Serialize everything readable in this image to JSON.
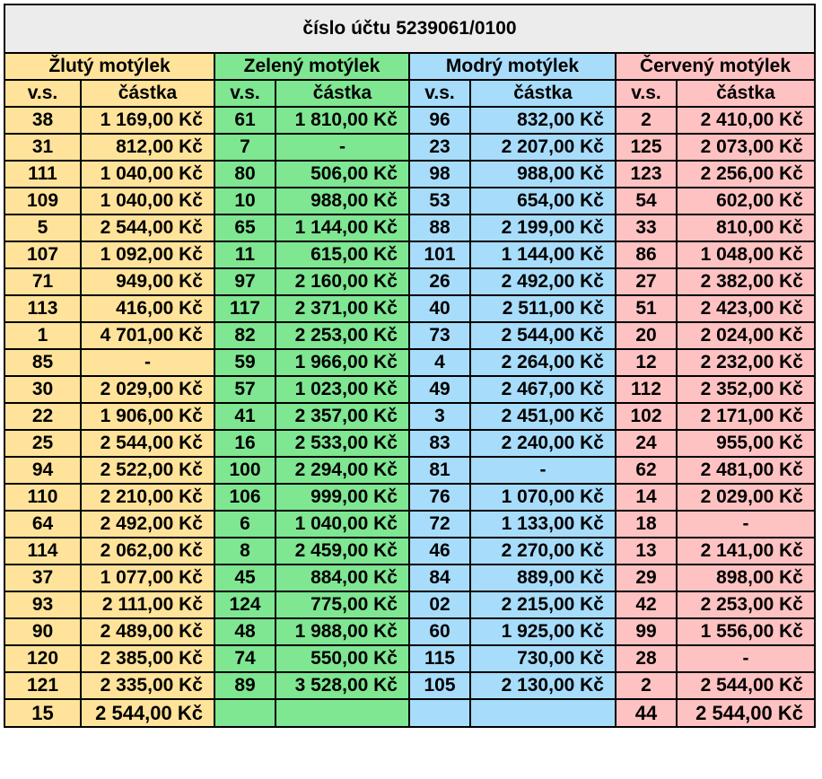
{
  "title": "číslo účtu 5239061/0100",
  "colors": {
    "yellow": "#ffe39a",
    "green": "#7fe692",
    "blue": "#a7dcfa",
    "red": "#ffc2c2",
    "title_bg": "#ececec"
  },
  "groups": [
    {
      "name": "Žlutý motýlek",
      "color_key": "yellow"
    },
    {
      "name": "Zelený motýlek",
      "color_key": "green"
    },
    {
      "name": "Modrý motýlek",
      "color_key": "blue"
    },
    {
      "name": "Červený motýlek",
      "color_key": "red"
    }
  ],
  "subheaders": {
    "vs": "v.s.",
    "amount": "částka"
  },
  "rows": [
    [
      [
        "38",
        "1 169,00 Kč"
      ],
      [
        "61",
        "1 810,00 Kč"
      ],
      [
        "96",
        "832,00 Kč"
      ],
      [
        "2",
        "2 410,00 Kč"
      ]
    ],
    [
      [
        "31",
        "812,00 Kč"
      ],
      [
        "7",
        "-"
      ],
      [
        "23",
        "2 207,00 Kč"
      ],
      [
        "125",
        "2 073,00 Kč"
      ]
    ],
    [
      [
        "111",
        "1 040,00 Kč"
      ],
      [
        "80",
        "506,00 Kč"
      ],
      [
        "98",
        "988,00 Kč"
      ],
      [
        "123",
        "2 256,00 Kč"
      ]
    ],
    [
      [
        "109",
        "1 040,00 Kč"
      ],
      [
        "10",
        "988,00 Kč"
      ],
      [
        "53",
        "654,00 Kč"
      ],
      [
        "54",
        "602,00 Kč"
      ]
    ],
    [
      [
        "5",
        "2 544,00 Kč"
      ],
      [
        "65",
        "1 144,00 Kč"
      ],
      [
        "88",
        "2 199,00 Kč"
      ],
      [
        "33",
        "810,00 Kč"
      ]
    ],
    [
      [
        "107",
        "1 092,00 Kč"
      ],
      [
        "11",
        "615,00 Kč"
      ],
      [
        "101",
        "1 144,00 Kč"
      ],
      [
        "86",
        "1 048,00 Kč"
      ]
    ],
    [
      [
        "71",
        "949,00 Kč"
      ],
      [
        "97",
        "2 160,00 Kč"
      ],
      [
        "26",
        "2 492,00 Kč"
      ],
      [
        "27",
        "2 382,00 Kč"
      ]
    ],
    [
      [
        "113",
        "416,00 Kč"
      ],
      [
        "117",
        "2 371,00 Kč"
      ],
      [
        "40",
        "2 511,00 Kč"
      ],
      [
        "51",
        "2 423,00 Kč"
      ]
    ],
    [
      [
        "1",
        "4 701,00 Kč"
      ],
      [
        "82",
        "2 253,00 Kč"
      ],
      [
        "73",
        "2 544,00 Kč"
      ],
      [
        "20",
        "2 024,00 Kč"
      ]
    ],
    [
      [
        "85",
        "-"
      ],
      [
        "59",
        "1 966,00 Kč"
      ],
      [
        "4",
        "2 264,00 Kč"
      ],
      [
        "12",
        "2 232,00 Kč"
      ]
    ],
    [
      [
        "30",
        "2 029,00 Kč"
      ],
      [
        "57",
        "1 023,00 Kč"
      ],
      [
        "49",
        "2 467,00 Kč"
      ],
      [
        "112",
        "2 352,00 Kč"
      ]
    ],
    [
      [
        "22",
        "1 906,00 Kč"
      ],
      [
        "41",
        "2 357,00 Kč"
      ],
      [
        "3",
        "2 451,00 Kč"
      ],
      [
        "102",
        "2 171,00 Kč"
      ]
    ],
    [
      [
        "25",
        "2 544,00 Kč"
      ],
      [
        "16",
        "2 533,00 Kč"
      ],
      [
        "83",
        "2 240,00 Kč"
      ],
      [
        "24",
        "955,00 Kč"
      ]
    ],
    [
      [
        "94",
        "2 522,00 Kč"
      ],
      [
        "100",
        "2 294,00 Kč"
      ],
      [
        "81",
        "-"
      ],
      [
        "62",
        "2 481,00 Kč"
      ]
    ],
    [
      [
        "110",
        "2 210,00 Kč"
      ],
      [
        "106",
        "999,00 Kč"
      ],
      [
        "76",
        "1 070,00 Kč"
      ],
      [
        "14",
        "2 029,00 Kč"
      ]
    ],
    [
      [
        "64",
        "2 492,00 Kč"
      ],
      [
        "6",
        "1 040,00 Kč"
      ],
      [
        "72",
        "1 133,00 Kč"
      ],
      [
        "18",
        "-"
      ]
    ],
    [
      [
        "114",
        "2 062,00 Kč"
      ],
      [
        "8",
        "2 459,00 Kč"
      ],
      [
        "46",
        "2 270,00 Kč"
      ],
      [
        "13",
        "2 141,00 Kč"
      ]
    ],
    [
      [
        "37",
        "1 077,00 Kč"
      ],
      [
        "45",
        "884,00 Kč"
      ],
      [
        "84",
        "889,00 Kč"
      ],
      [
        "29",
        "898,00 Kč"
      ]
    ],
    [
      [
        "93",
        "2 111,00 Kč"
      ],
      [
        "124",
        "775,00 Kč"
      ],
      [
        "02",
        "2 215,00 Kč"
      ],
      [
        "42",
        "2 253,00 Kč"
      ]
    ],
    [
      [
        "90",
        "2 489,00 Kč"
      ],
      [
        "48",
        "1 988,00 Kč"
      ],
      [
        "60",
        "1 925,00 Kč"
      ],
      [
        "99",
        "1 556,00 Kč"
      ]
    ],
    [
      [
        "120",
        "2 385,00 Kč"
      ],
      [
        "74",
        "550,00 Kč"
      ],
      [
        "115",
        "730,00 Kč"
      ],
      [
        "28",
        "-"
      ]
    ],
    [
      [
        "121",
        "2 335,00 Kč"
      ],
      [
        "89",
        "3 528,00 Kč"
      ],
      [
        "105",
        "2 130,00 Kč"
      ],
      [
        "2",
        "2 544,00 Kč"
      ]
    ],
    [
      [
        "15",
        "2 544,00 Kč"
      ],
      [
        "",
        ""
      ],
      [
        "",
        ""
      ],
      [
        "44",
        "2 544,00 Kč"
      ]
    ]
  ]
}
